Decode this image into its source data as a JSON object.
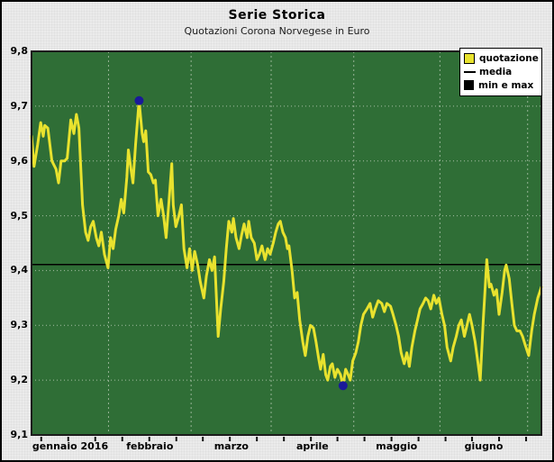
{
  "title": "Serie Storica",
  "subtitle": "Quotazioni Corona Norvegese in Euro",
  "legend": {
    "items": [
      {
        "label": "quotazione",
        "swatch": "yellow-square",
        "color": "#e8e22e"
      },
      {
        "label": "media",
        "swatch": "black-line",
        "color": "#000000"
      },
      {
        "label": "min e max",
        "swatch": "black-square",
        "color": "#1a1a99"
      }
    ]
  },
  "colors": {
    "outer_bg": "#ebebeb",
    "plot_bg": "#2f6e36",
    "plot_border": "#1c1c1c",
    "grid": "#cdd9c8",
    "quote_line": "#e8e22e",
    "media_line": "#000000",
    "minmax_dot": "#1a1a99",
    "text": "#000000"
  },
  "chart_data": {
    "type": "line",
    "title": "Serie Storica",
    "subtitle": "Quotazioni Corona Norvegese in Euro",
    "xlabel": "",
    "ylabel": "",
    "ylim": [
      9.1,
      9.8
    ],
    "yticks": [
      9.8,
      9.7,
      9.6,
      9.5,
      9.4,
      9.3,
      9.2,
      9.1
    ],
    "ytick_labels": [
      "9,8",
      "9,7",
      "9,6",
      "9,5",
      "9,4",
      "9,3",
      "9,2",
      "9,1"
    ],
    "ygrid": [
      9.7,
      9.6,
      9.5,
      9.4,
      9.3,
      9.2
    ],
    "grid": "dotted",
    "legend_position": "top-right",
    "months": [
      {
        "label": "gennaio 2016",
        "center": 0.076
      },
      {
        "label": "febbraio",
        "center": 0.232
      },
      {
        "label": "marzo",
        "center": 0.392
      },
      {
        "label": "aprile",
        "center": 0.551
      },
      {
        "label": "maggio",
        "center": 0.716
      },
      {
        "label": "giugno",
        "center": 0.887
      }
    ],
    "month_boundaries": [
      0.151,
      0.313,
      0.47,
      0.632,
      0.801,
      0.973
    ],
    "minor_ticks": [
      0.019,
      0.072,
      0.125,
      0.178,
      0.231,
      0.284,
      0.336,
      0.389,
      0.442,
      0.495,
      0.548,
      0.6,
      0.653,
      0.706,
      0.759,
      0.812,
      0.864,
      0.917,
      0.97
    ],
    "series": [
      {
        "name": "quotazione",
        "color": "#e8e22e",
        "points": [
          [
            0.0,
            9.645
          ],
          [
            0.005,
            9.59
          ],
          [
            0.012,
            9.63
          ],
          [
            0.018,
            9.67
          ],
          [
            0.023,
            9.645
          ],
          [
            0.026,
            9.665
          ],
          [
            0.032,
            9.66
          ],
          [
            0.04,
            9.6
          ],
          [
            0.048,
            9.585
          ],
          [
            0.053,
            9.56
          ],
          [
            0.058,
            9.6
          ],
          [
            0.065,
            9.6
          ],
          [
            0.07,
            9.605
          ],
          [
            0.077,
            9.675
          ],
          [
            0.083,
            9.65
          ],
          [
            0.088,
            9.685
          ],
          [
            0.093,
            9.66
          ],
          [
            0.1,
            9.52
          ],
          [
            0.106,
            9.47
          ],
          [
            0.111,
            9.455
          ],
          [
            0.116,
            9.48
          ],
          [
            0.121,
            9.49
          ],
          [
            0.127,
            9.46
          ],
          [
            0.132,
            9.445
          ],
          [
            0.137,
            9.47
          ],
          [
            0.143,
            9.43
          ],
          [
            0.15,
            9.405
          ],
          [
            0.155,
            9.46
          ],
          [
            0.16,
            9.44
          ],
          [
            0.165,
            9.475
          ],
          [
            0.171,
            9.5
          ],
          [
            0.176,
            9.53
          ],
          [
            0.181,
            9.505
          ],
          [
            0.187,
            9.57
          ],
          [
            0.19,
            9.62
          ],
          [
            0.195,
            9.585
          ],
          [
            0.199,
            9.56
          ],
          [
            0.204,
            9.63
          ],
          [
            0.211,
            9.71
          ],
          [
            0.217,
            9.65
          ],
          [
            0.22,
            9.635
          ],
          [
            0.224,
            9.655
          ],
          [
            0.229,
            9.58
          ],
          [
            0.234,
            9.575
          ],
          [
            0.239,
            9.56
          ],
          [
            0.243,
            9.565
          ],
          [
            0.248,
            9.5
          ],
          [
            0.254,
            9.53
          ],
          [
            0.259,
            9.5
          ],
          [
            0.264,
            9.46
          ],
          [
            0.269,
            9.52
          ],
          [
            0.275,
            9.595
          ],
          [
            0.278,
            9.52
          ],
          [
            0.283,
            9.48
          ],
          [
            0.289,
            9.5
          ],
          [
            0.294,
            9.52
          ],
          [
            0.299,
            9.44
          ],
          [
            0.305,
            9.405
          ],
          [
            0.31,
            9.44
          ],
          [
            0.315,
            9.4
          ],
          [
            0.32,
            9.435
          ],
          [
            0.326,
            9.41
          ],
          [
            0.331,
            9.38
          ],
          [
            0.338,
            9.35
          ],
          [
            0.343,
            9.39
          ],
          [
            0.349,
            9.42
          ],
          [
            0.354,
            9.4
          ],
          [
            0.359,
            9.425
          ],
          [
            0.366,
            9.28
          ],
          [
            0.371,
            9.33
          ],
          [
            0.377,
            9.38
          ],
          [
            0.382,
            9.44
          ],
          [
            0.387,
            9.49
          ],
          [
            0.393,
            9.47
          ],
          [
            0.396,
            9.495
          ],
          [
            0.401,
            9.46
          ],
          [
            0.407,
            9.44
          ],
          [
            0.412,
            9.465
          ],
          [
            0.417,
            9.485
          ],
          [
            0.423,
            9.46
          ],
          [
            0.426,
            9.49
          ],
          [
            0.431,
            9.46
          ],
          [
            0.437,
            9.45
          ],
          [
            0.442,
            9.42
          ],
          [
            0.447,
            9.43
          ],
          [
            0.452,
            9.445
          ],
          [
            0.458,
            9.42
          ],
          [
            0.463,
            9.44
          ],
          [
            0.468,
            9.43
          ],
          [
            0.474,
            9.45
          ],
          [
            0.479,
            9.47
          ],
          [
            0.484,
            9.485
          ],
          [
            0.488,
            9.49
          ],
          [
            0.493,
            9.47
          ],
          [
            0.498,
            9.46
          ],
          [
            0.502,
            9.44
          ],
          [
            0.505,
            9.445
          ],
          [
            0.511,
            9.4
          ],
          [
            0.516,
            9.35
          ],
          [
            0.521,
            9.36
          ],
          [
            0.526,
            9.31
          ],
          [
            0.532,
            9.27
          ],
          [
            0.537,
            9.245
          ],
          [
            0.542,
            9.28
          ],
          [
            0.547,
            9.3
          ],
          [
            0.553,
            9.295
          ],
          [
            0.558,
            9.27
          ],
          [
            0.563,
            9.24
          ],
          [
            0.567,
            9.22
          ],
          [
            0.572,
            9.247
          ],
          [
            0.577,
            9.21
          ],
          [
            0.581,
            9.2
          ],
          [
            0.586,
            9.225
          ],
          [
            0.59,
            9.23
          ],
          [
            0.595,
            9.205
          ],
          [
            0.6,
            9.22
          ],
          [
            0.606,
            9.21
          ],
          [
            0.611,
            9.19
          ],
          [
            0.616,
            9.22
          ],
          [
            0.621,
            9.21
          ],
          [
            0.625,
            9.2
          ],
          [
            0.63,
            9.235
          ],
          [
            0.636,
            9.25
          ],
          [
            0.641,
            9.27
          ],
          [
            0.646,
            9.3
          ],
          [
            0.651,
            9.32
          ],
          [
            0.658,
            9.33
          ],
          [
            0.664,
            9.34
          ],
          [
            0.669,
            9.315
          ],
          [
            0.674,
            9.33
          ],
          [
            0.68,
            9.345
          ],
          [
            0.687,
            9.34
          ],
          [
            0.692,
            9.325
          ],
          [
            0.697,
            9.34
          ],
          [
            0.704,
            9.335
          ],
          [
            0.709,
            9.32
          ],
          [
            0.715,
            9.3
          ],
          [
            0.72,
            9.28
          ],
          [
            0.725,
            9.25
          ],
          [
            0.731,
            9.23
          ],
          [
            0.736,
            9.25
          ],
          [
            0.741,
            9.225
          ],
          [
            0.746,
            9.26
          ],
          [
            0.752,
            9.29
          ],
          [
            0.757,
            9.31
          ],
          [
            0.762,
            9.33
          ],
          [
            0.768,
            9.34
          ],
          [
            0.773,
            9.35
          ],
          [
            0.778,
            9.345
          ],
          [
            0.783,
            9.33
          ],
          [
            0.789,
            9.355
          ],
          [
            0.794,
            9.34
          ],
          [
            0.799,
            9.35
          ],
          [
            0.805,
            9.32
          ],
          [
            0.81,
            9.3
          ],
          [
            0.815,
            9.26
          ],
          [
            0.822,
            9.235
          ],
          [
            0.827,
            9.26
          ],
          [
            0.833,
            9.28
          ],
          [
            0.838,
            9.3
          ],
          [
            0.843,
            9.31
          ],
          [
            0.849,
            9.28
          ],
          [
            0.854,
            9.3
          ],
          [
            0.859,
            9.32
          ],
          [
            0.864,
            9.3
          ],
          [
            0.87,
            9.27
          ],
          [
            0.875,
            9.235
          ],
          [
            0.88,
            9.2
          ],
          [
            0.886,
            9.31
          ],
          [
            0.893,
            9.42
          ],
          [
            0.898,
            9.37
          ],
          [
            0.901,
            9.375
          ],
          [
            0.907,
            9.355
          ],
          [
            0.912,
            9.365
          ],
          [
            0.917,
            9.32
          ],
          [
            0.923,
            9.36
          ],
          [
            0.928,
            9.4
          ],
          [
            0.931,
            9.41
          ],
          [
            0.937,
            9.385
          ],
          [
            0.942,
            9.34
          ],
          [
            0.947,
            9.3
          ],
          [
            0.952,
            9.29
          ],
          [
            0.958,
            9.29
          ],
          [
            0.963,
            9.28
          ],
          [
            0.968,
            9.265
          ],
          [
            0.975,
            9.245
          ],
          [
            0.981,
            9.29
          ],
          [
            0.986,
            9.32
          ],
          [
            0.993,
            9.35
          ],
          [
            1.0,
            9.37
          ]
        ]
      },
      {
        "name": "media",
        "color": "#000000",
        "value": 9.411
      },
      {
        "name": "min e max",
        "color": "#1a1a99",
        "points": [
          [
            0.211,
            9.71
          ],
          [
            0.611,
            9.19
          ]
        ]
      }
    ]
  }
}
